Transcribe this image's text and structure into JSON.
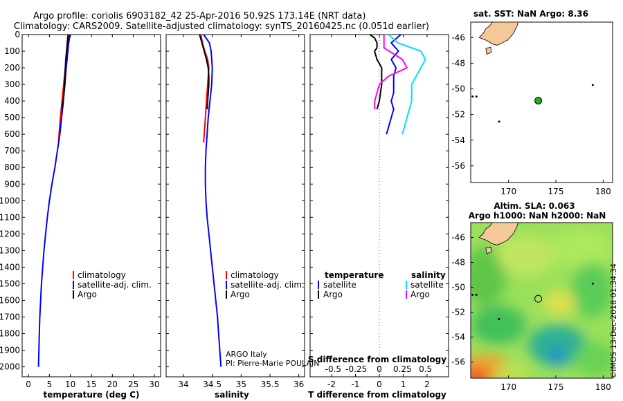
{
  "header": {
    "title_line1": "Argo profile: coriolis 6903182_42 25-Apr-2016 50.92S 173.14E (NRT data)",
    "title_line2": "Climatology: CARS2009. Satellite-adjusted climatology: synTS_20160425.nc (0.051d earlier)"
  },
  "colors": {
    "climatology": "#ff0000",
    "satellite": "#0000ff",
    "argo": "#000000",
    "sal_satellite": "#00e0ff",
    "sal_argo": "#ff00ff",
    "land": "#f5c89a",
    "float": "#22aa22"
  },
  "depth_ticks": [
    0,
    100,
    200,
    300,
    400,
    500,
    600,
    700,
    800,
    900,
    1000,
    1100,
    1200,
    1300,
    1400,
    1500,
    1600,
    1700,
    1800,
    1900,
    2000
  ],
  "chart_data": [
    {
      "type": "line",
      "title": "",
      "xlabel": "temperature (deg C)",
      "ylabel": "",
      "xlim": [
        -1.5,
        31.5
      ],
      "ylim": [
        2060,
        0
      ],
      "xticks": [
        0,
        5,
        10,
        15,
        20,
        25,
        30
      ],
      "legend": [
        "climatology",
        "satellite-adj. clim.",
        "Argo"
      ],
      "series": [
        {
          "name": "climatology",
          "color": "#ff0000",
          "depth": [
            0,
            100,
            200,
            300,
            400,
            500,
            600,
            650
          ],
          "values": [
            9.4,
            9.1,
            8.8,
            8.4,
            8.0,
            7.6,
            7.3,
            7.2
          ]
        },
        {
          "name": "satellite-adj. clim.",
          "color": "#0000ff",
          "depth": [
            0,
            50,
            100,
            200,
            300,
            400,
            500,
            600,
            700,
            800,
            900,
            1000,
            1100,
            1200,
            1300,
            1400,
            1500,
            1600,
            1700,
            1800,
            1900,
            2000
          ],
          "values": [
            9.9,
            9.6,
            9.4,
            9.0,
            8.7,
            8.3,
            7.9,
            7.5,
            6.9,
            6.3,
            5.6,
            5.0,
            4.5,
            4.1,
            3.7,
            3.4,
            3.1,
            2.9,
            2.7,
            2.6,
            2.5,
            2.4
          ]
        },
        {
          "name": "Argo",
          "color": "#000000",
          "depth": [
            0,
            50,
            100,
            150,
            200,
            300,
            400,
            450
          ],
          "values": [
            9.5,
            9.3,
            9.1,
            8.9,
            8.8,
            8.6,
            8.3,
            8.1
          ]
        }
      ]
    },
    {
      "type": "line",
      "xlabel": "salinity",
      "xlim": [
        33.7,
        36.1
      ],
      "ylim": [
        2060,
        0
      ],
      "xticks": [
        34,
        34.5,
        35,
        35.5,
        36
      ],
      "xticklabels": [
        "34",
        "34.5",
        "35",
        "35.5",
        "36"
      ],
      "legend": [
        "climatology",
        "satellite-adj. clim.",
        "Argo"
      ],
      "annotation": [
        "ARGO Italy",
        "PI: Pierre-Marie POULAIN"
      ],
      "series": [
        {
          "name": "climatology",
          "color": "#ff0000",
          "depth": [
            0,
            50,
            100,
            150,
            200,
            300,
            400,
            500,
            600,
            650
          ],
          "values": [
            34.3,
            34.33,
            34.37,
            34.42,
            34.44,
            34.42,
            34.4,
            34.38,
            34.36,
            34.35
          ]
        },
        {
          "name": "satellite-adj. clim.",
          "color": "#0000ff",
          "depth": [
            0,
            50,
            100,
            200,
            300,
            400,
            500,
            600,
            700,
            800,
            900,
            1000,
            1100,
            1200,
            1300,
            1400,
            1500,
            1600,
            1700,
            1800,
            1900,
            2000
          ],
          "values": [
            34.35,
            34.45,
            34.48,
            34.5,
            34.49,
            34.46,
            34.43,
            34.41,
            34.39,
            34.38,
            34.38,
            34.39,
            34.41,
            34.44,
            34.47,
            34.5,
            34.53,
            34.56,
            34.59,
            34.61,
            34.63,
            34.65
          ]
        },
        {
          "name": "Argo",
          "color": "#000000",
          "depth": [
            0,
            50,
            100,
            150,
            200,
            250,
            300,
            350,
            400,
            450
          ],
          "values": [
            34.28,
            34.32,
            34.36,
            34.4,
            34.43,
            34.44,
            34.44,
            34.43,
            34.42,
            34.41
          ]
        }
      ]
    },
    {
      "type": "line",
      "xlabel": "T difference from climatology",
      "xlabel_top": "S difference from climatology",
      "xlim": [
        -2.9,
        2.9
      ],
      "ylim": [
        2060,
        0
      ],
      "xticks": [
        -2,
        -1,
        0,
        1,
        2
      ],
      "xticklabels": [
        "-2",
        "-1",
        "0",
        "1",
        "2"
      ],
      "xticks_top": [
        -0.5,
        -0.25,
        0,
        0.25,
        0.5
      ],
      "xticklabels_top": [
        "-0.5",
        "-0.25",
        "0",
        "0.25",
        "0.5"
      ],
      "legend_left_title": "temperature",
      "legend_right_title": "salinity",
      "legend_left": [
        "satellite",
        "Argo"
      ],
      "legend_right": [
        "satellite",
        "Argo"
      ],
      "series": [
        {
          "name": "T satellite",
          "color": "#0000ff",
          "depth": [
            0,
            50,
            100,
            150,
            200,
            250,
            300,
            350,
            400,
            450,
            500,
            550,
            600
          ],
          "values": [
            0.9,
            0.5,
            0.8,
            0.5,
            0.7,
            0.6,
            0.6,
            0.6,
            0.5,
            0.6,
            0.5,
            0.4,
            0.3
          ]
        },
        {
          "name": "T Argo",
          "color": "#000000",
          "depth": [
            0,
            20,
            50,
            80,
            100,
            150,
            200,
            300,
            400,
            450
          ],
          "values": [
            -0.4,
            -0.2,
            -0.1,
            -0.1,
            -0.2,
            -0.1,
            0.1,
            0.1,
            0.0,
            -0.1
          ]
        },
        {
          "name": "S satellite",
          "color": "#00e0ff",
          "depth": [
            0,
            50,
            100,
            150,
            200,
            250,
            300,
            400,
            500,
            600
          ],
          "values": [
            0.1,
            0.2,
            0.45,
            0.5,
            0.45,
            0.4,
            0.35,
            0.35,
            0.3,
            0.25
          ]
        },
        {
          "name": "S Argo",
          "color": "#ff00ff",
          "depth": [
            0,
            80,
            150,
            200,
            250,
            300,
            400,
            450
          ],
          "values": [
            0.05,
            0.05,
            0.25,
            0.3,
            0.1,
            0.0,
            -0.05,
            -0.05
          ]
        }
      ]
    },
    {
      "type": "map",
      "title": "sat. SST: NaN Argo: 8.36",
      "xlim": [
        166,
        181
      ],
      "ylim": [
        -57.3,
        -44.8
      ],
      "xticks": [
        170,
        175,
        180
      ],
      "yticks": [
        -46,
        -48,
        -50,
        -52,
        -54,
        -56
      ],
      "float_position": {
        "lon": 173.14,
        "lat": -50.92
      }
    },
    {
      "type": "heatmap",
      "title_line1": "Altim. SLA: 0.063",
      "title_line2": "Argo h1000: NaN h2000: NaN",
      "xlim": [
        166,
        181
      ],
      "ylim": [
        -57.3,
        -44.8
      ],
      "xticks": [
        170,
        175,
        180
      ],
      "yticks": [
        -46,
        -48,
        -50,
        -52,
        -54,
        -56
      ],
      "float_position": {
        "lon": 173.14,
        "lat": -50.92
      }
    }
  ],
  "footer": {
    "credit": "©IMOS 13-Dec-2018 01:34:34"
  }
}
